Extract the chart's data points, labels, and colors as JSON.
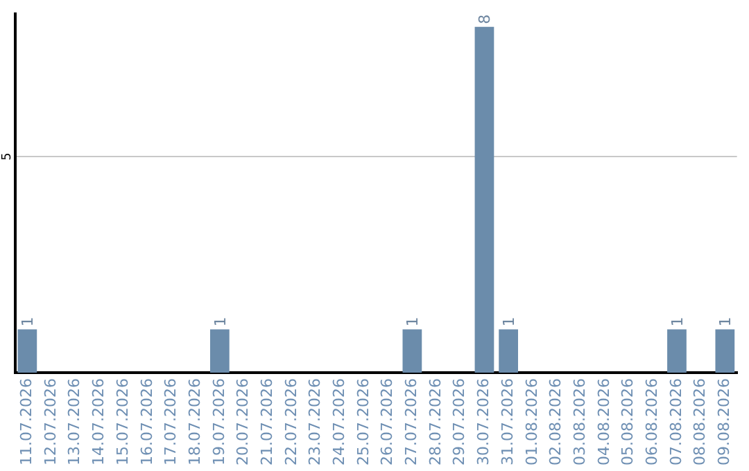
{
  "chart_data": {
    "type": "bar",
    "categories": [
      "11.07.2026",
      "12.07.2026",
      "13.07.2026",
      "14.07.2026",
      "15.07.2026",
      "16.07.2026",
      "17.07.2026",
      "18.07.2026",
      "19.07.2026",
      "20.07.2026",
      "21.07.2026",
      "22.07.2026",
      "23.07.2026",
      "24.07.2026",
      "25.07.2026",
      "26.07.2026",
      "27.07.2026",
      "28.07.2026",
      "29.07.2026",
      "30.07.2026",
      "31.07.2026",
      "01.08.2026",
      "02.08.2026",
      "03.08.2026",
      "04.08.2026",
      "05.08.2026",
      "06.08.2026",
      "07.08.2026",
      "08.08.2026",
      "09.08.2026"
    ],
    "values": [
      1,
      0,
      0,
      0,
      0,
      0,
      0,
      0,
      1,
      0,
      0,
      0,
      0,
      0,
      0,
      0,
      1,
      0,
      0,
      8,
      1,
      0,
      0,
      0,
      0,
      0,
      0,
      1,
      0,
      1
    ],
    "value_labels": [
      "1",
      null,
      null,
      null,
      null,
      null,
      null,
      null,
      "1",
      null,
      null,
      null,
      null,
      null,
      null,
      null,
      "1",
      null,
      null,
      "8",
      "1",
      null,
      null,
      null,
      null,
      null,
      null,
      "1",
      null,
      "1"
    ],
    "color": "#6b8cab",
    "ylim": [
      0,
      8.3
    ],
    "yticks": [
      5
    ],
    "grid": "y",
    "legend": false
  }
}
